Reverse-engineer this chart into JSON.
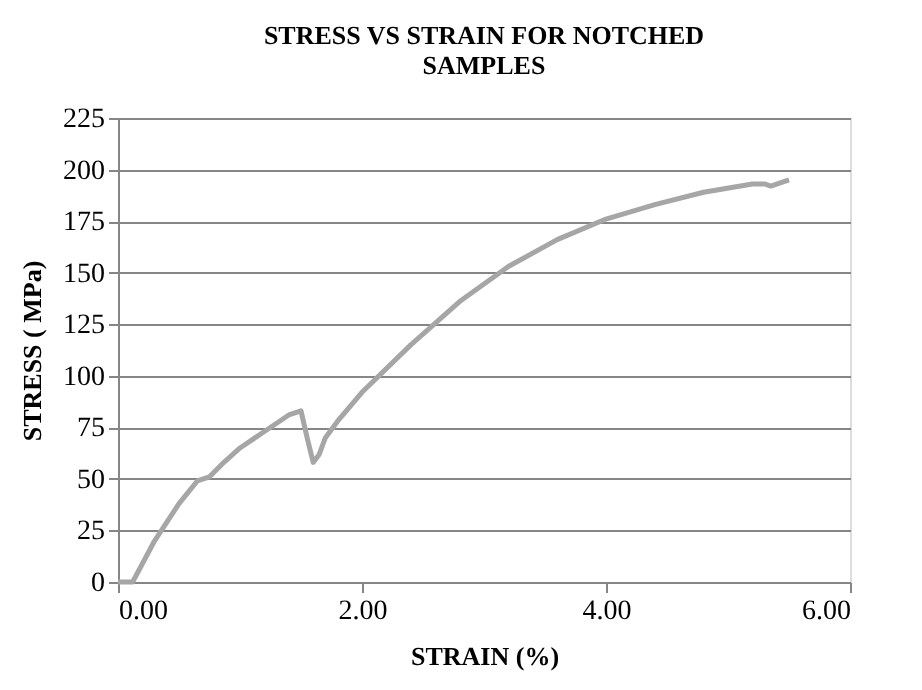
{
  "chart_data": {
    "type": "line",
    "title": [
      "STRESS VS STRAIN FOR NOTCHED",
      "SAMPLES"
    ],
    "xlabel": "STRAIN  (%)",
    "ylabel": "STRESS  ( MPa)",
    "x": [
      0,
      0.12,
      0.3,
      0.5,
      0.65,
      0.75,
      0.85,
      1.0,
      1.2,
      1.4,
      1.5,
      1.55,
      1.6,
      1.65,
      1.7,
      1.8,
      2.0,
      2.4,
      2.8,
      3.2,
      3.6,
      4.0,
      4.4,
      4.8,
      5.2,
      5.3,
      5.35,
      5.5
    ],
    "series": [
      {
        "color": "#a6a6a6",
        "values": [
          0,
          0,
          20,
          38,
          49,
          51,
          57,
          65,
          73,
          81,
          83,
          70,
          58,
          62,
          70,
          78,
          92,
          115,
          136,
          153,
          166,
          176,
          183,
          189,
          193,
          193,
          192,
          195
        ]
      }
    ],
    "xlim": [
      0,
      6
    ],
    "xticks": [
      {
        "value": 0,
        "label": "0.00"
      },
      {
        "value": 2,
        "label": "2.00"
      },
      {
        "value": 4,
        "label": "4.00"
      },
      {
        "value": 6,
        "label": "6.00"
      }
    ],
    "ylim": [
      0,
      225
    ],
    "yticks": [
      0,
      25,
      50,
      75,
      100,
      125,
      150,
      175,
      200,
      225
    ],
    "grid": "y",
    "marker": "none",
    "line_style": "solid"
  }
}
